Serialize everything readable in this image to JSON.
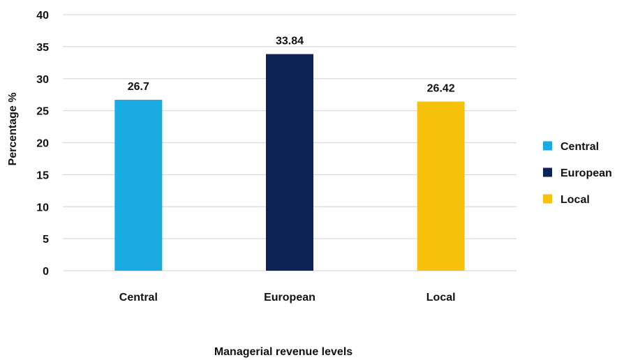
{
  "chart_data": {
    "type": "bar",
    "title": "",
    "categories": [
      "Central",
      "European",
      "Local"
    ],
    "values": [
      26.7,
      33.84,
      26.42
    ],
    "data_labels": [
      "26.7",
      "33.84",
      "26.42"
    ],
    "colors": [
      "#1aabe3",
      "#0d2357",
      "#f6c10a"
    ],
    "xlabel": "Managerial revenue levels",
    "ylabel": "Percentage %",
    "ylim": [
      0,
      40
    ],
    "yticks": [
      0,
      5,
      10,
      15,
      20,
      25,
      30,
      35,
      40
    ],
    "grid": true,
    "gridline_color": "#d9d9d9",
    "legend": {
      "position": "right",
      "entries": [
        "Central",
        "European",
        "Local"
      ]
    }
  }
}
